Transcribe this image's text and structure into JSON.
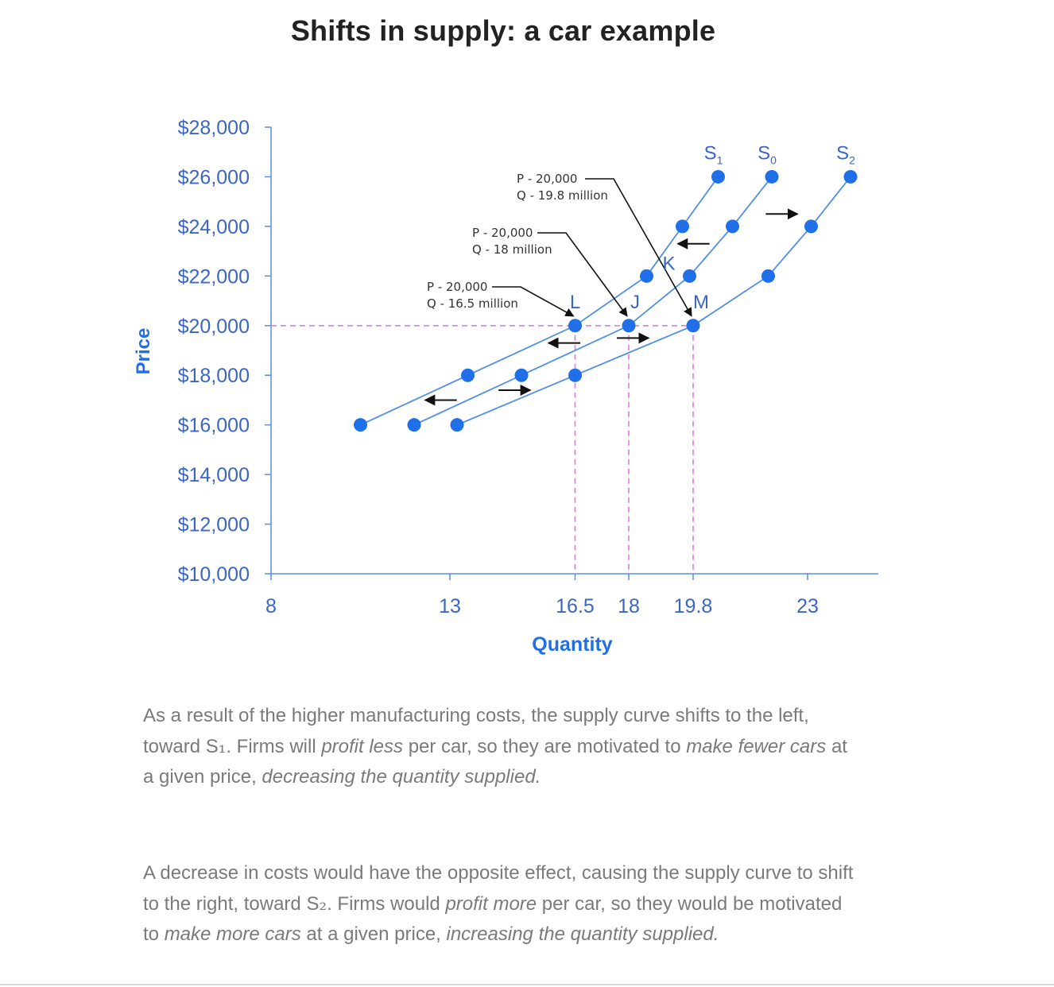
{
  "title": "Shifts in supply: a car example",
  "chart_data": {
    "type": "line",
    "xlabel": "Quantity",
    "ylabel": "Price",
    "xlim": [
      8,
      25
    ],
    "ylim": [
      10000,
      28000
    ],
    "x_ticks": [
      8,
      13,
      16.5,
      18,
      19.8,
      23
    ],
    "x_tick_labels": [
      "8",
      "13",
      "16.5",
      "18",
      "19.8",
      "23"
    ],
    "y_ticks": [
      10000,
      12000,
      14000,
      16000,
      18000,
      20000,
      22000,
      24000,
      26000,
      28000
    ],
    "y_tick_labels": [
      "$10,000",
      "$12,000",
      "$14,000",
      "$16,000",
      "$18,000",
      "$20,000",
      "$22,000",
      "$24,000",
      "$26,000",
      "$28,000"
    ],
    "series": [
      {
        "name": "S1",
        "label_main": "S",
        "label_sub": "1",
        "x": [
          10.5,
          13.5,
          16.5,
          18.5,
          19.5,
          20.5
        ],
        "y": [
          16000,
          18000,
          20000,
          22000,
          24000,
          26000
        ]
      },
      {
        "name": "S0",
        "label_main": "S",
        "label_sub": "0",
        "x": [
          12,
          15,
          18,
          19.7,
          20.9,
          22
        ],
        "y": [
          16000,
          18000,
          20000,
          22000,
          24000,
          26000
        ]
      },
      {
        "name": "S2",
        "label_main": "S",
        "label_sub": "2",
        "x": [
          13.2,
          16.5,
          19.8,
          21.9,
          23.1,
          24.2
        ],
        "y": [
          16000,
          18000,
          20000,
          22000,
          24000,
          26000
        ]
      }
    ],
    "reference_line": {
      "price": 20000,
      "quantities": [
        16.5,
        18,
        19.8
      ]
    },
    "points": [
      {
        "label": "L",
        "x": 16.5,
        "y": 20000
      },
      {
        "label": "J",
        "x": 18,
        "y": 20000
      },
      {
        "label": "K",
        "x": 19.7,
        "y": 22000
      },
      {
        "label": "M",
        "x": 19.8,
        "y": 20000
      }
    ],
    "annotations": [
      {
        "line1": "P - 20,000",
        "line2": "Q - 19.8 million",
        "target_x": 19.8,
        "target_y": 20000
      },
      {
        "line1": "P - 20,000",
        "line2": "Q - 18 million",
        "target_x": 18,
        "target_y": 20000
      },
      {
        "line1": "P - 20,000",
        "line2": "Q - 16.5 million",
        "target_x": 16.5,
        "target_y": 20000
      }
    ],
    "shift_arrows": [
      {
        "direction": "left",
        "price": 17000
      },
      {
        "direction": "right",
        "price": 17400
      },
      {
        "direction": "left",
        "price": 19300
      },
      {
        "direction": "right",
        "price": 19500
      },
      {
        "direction": "left",
        "price": 23300
      },
      {
        "direction": "right",
        "price": 24500
      }
    ],
    "colors": {
      "curve": "#4f8fe6",
      "point": "#1f6fe8",
      "axis": "#5b8ce0",
      "tick_text": "#3b66c4",
      "guide": "#e079e0",
      "arrow": "#111111"
    }
  },
  "paragraph1": {
    "t1": "As a result of the higher manufacturing costs, the supply curve shifts to the left, toward S",
    "sub": "₁",
    "t2": ". Firms will ",
    "em1": "profit less",
    "t3": " per car, so they are motivated to ",
    "em2": "make fewer cars",
    "t4": " at a given price, ",
    "em3": "decreasing the quantity supplied."
  },
  "paragraph2": {
    "t1": "A decrease in costs would have the opposite effect, causing the supply curve to shift to the right, toward S",
    "sub": "₂",
    "t2": ". Firms would ",
    "em1": "profit more",
    "t3": " per car, so they would be motivated to ",
    "em2": "make more cars",
    "t4": " at a given price, ",
    "em3": "increasing the quantity supplied."
  }
}
